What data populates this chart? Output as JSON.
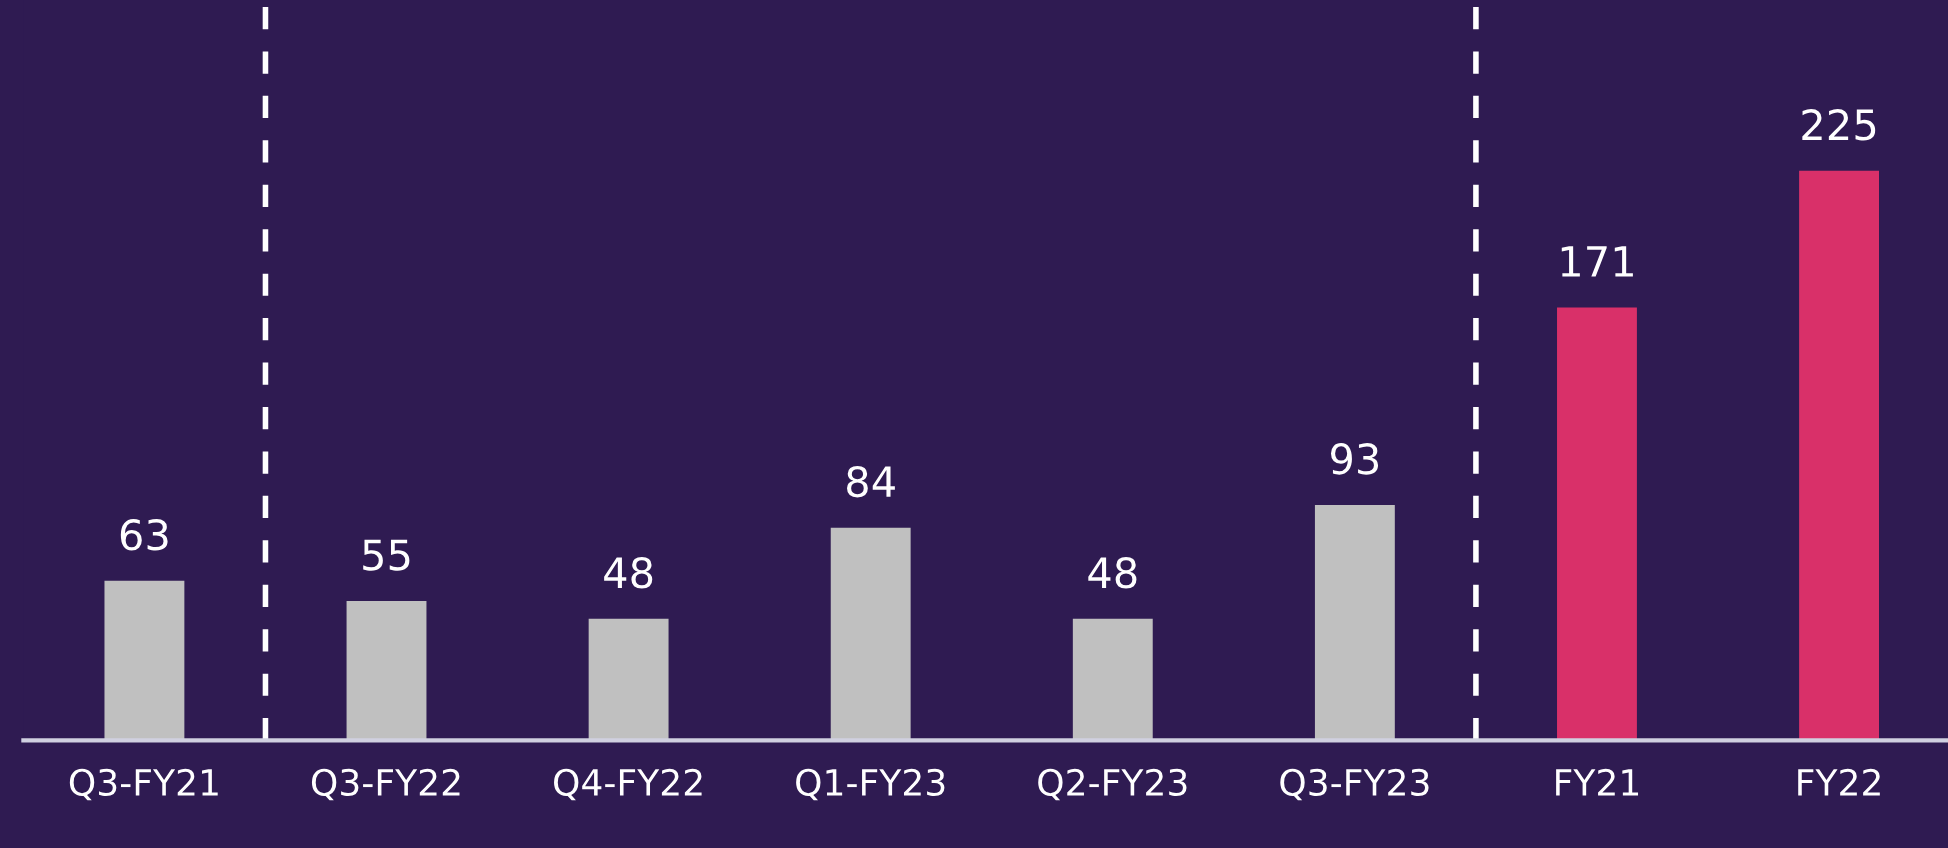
{
  "chart_data": {
    "type": "bar",
    "categories": [
      "Q3-FY21",
      "Q3-FY22",
      "Q4-FY22",
      "Q1-FY23",
      "Q2-FY23",
      "Q3-FY23",
      "FY21",
      "FY22"
    ],
    "values": [
      63,
      55,
      48,
      84,
      48,
      93,
      171,
      225
    ],
    "colors": [
      "#c0c0c0",
      "#c0c0c0",
      "#c0c0c0",
      "#c0c0c0",
      "#c0c0c0",
      "#c0c0c0",
      "#d93069",
      "#d93069"
    ],
    "data_labels": true,
    "tick_labels": "x",
    "grid": false,
    "legend": false
  }
}
